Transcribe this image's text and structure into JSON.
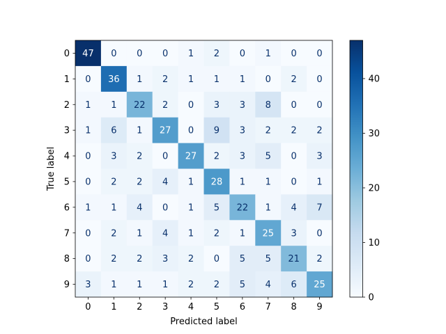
{
  "chart_data": {
    "type": "heatmap",
    "title": "",
    "xlabel": "Predicted label",
    "ylabel": "True label",
    "x_labels": [
      "0",
      "1",
      "2",
      "3",
      "4",
      "5",
      "6",
      "7",
      "8",
      "9"
    ],
    "y_labels": [
      "0",
      "1",
      "2",
      "3",
      "4",
      "5",
      "6",
      "7",
      "8",
      "9"
    ],
    "matrix": [
      [
        47,
        0,
        0,
        0,
        1,
        2,
        0,
        1,
        0,
        0
      ],
      [
        0,
        36,
        1,
        2,
        1,
        1,
        1,
        0,
        2,
        0
      ],
      [
        1,
        1,
        22,
        2,
        0,
        3,
        3,
        8,
        0,
        0
      ],
      [
        1,
        6,
        1,
        27,
        0,
        9,
        3,
        2,
        2,
        2
      ],
      [
        0,
        3,
        2,
        0,
        27,
        2,
        3,
        5,
        0,
        3
      ],
      [
        0,
        2,
        2,
        4,
        1,
        28,
        1,
        1,
        0,
        1
      ],
      [
        1,
        1,
        4,
        0,
        1,
        5,
        22,
        1,
        4,
        7
      ],
      [
        0,
        2,
        1,
        4,
        1,
        2,
        1,
        25,
        3,
        0
      ],
      [
        0,
        2,
        2,
        3,
        2,
        0,
        5,
        5,
        21,
        2
      ],
      [
        3,
        1,
        1,
        1,
        2,
        2,
        5,
        4,
        6,
        25
      ]
    ],
    "colormap": "Blues",
    "colorbar": {
      "vmin": 0,
      "vmax": 47,
      "ticks": [
        0,
        10,
        20,
        30,
        40
      ],
      "tick_labels": [
        "0",
        "10",
        "20",
        "30",
        "40"
      ]
    },
    "grid": false,
    "text_color_dark": "#08306b",
    "text_color_light": "#ffffff"
  }
}
